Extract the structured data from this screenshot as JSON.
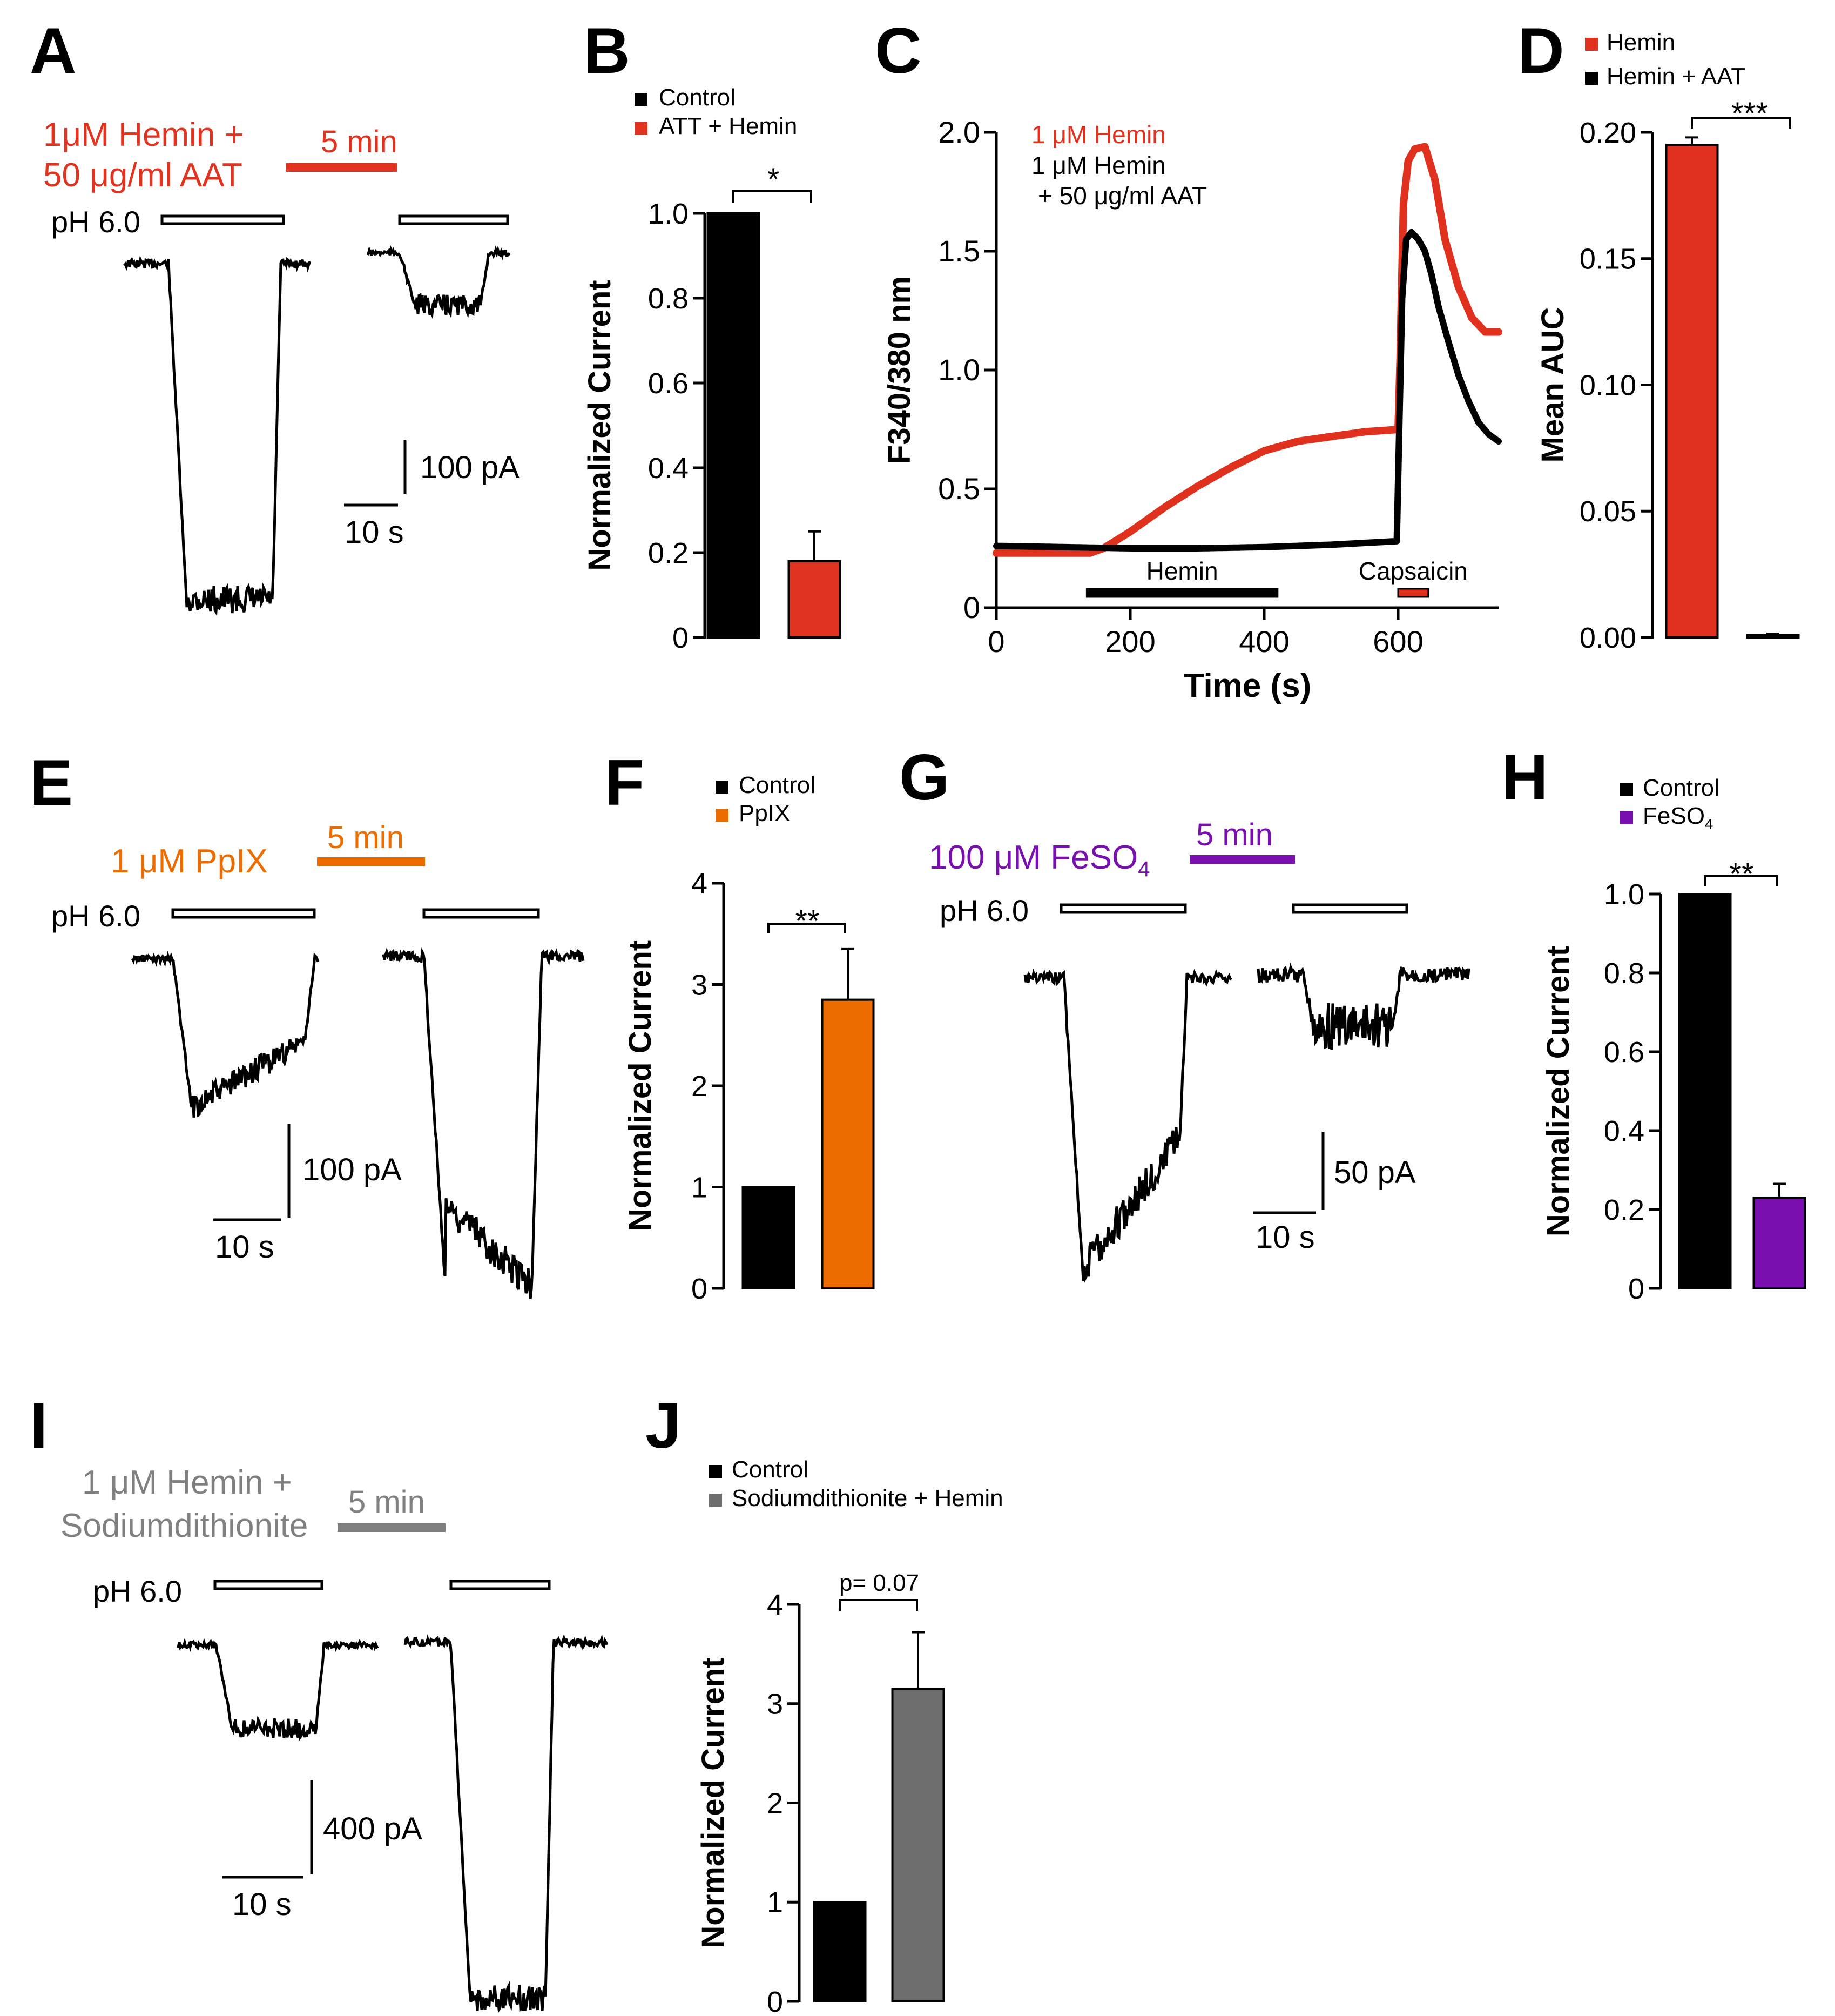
{
  "colors": {
    "black": "#000000",
    "red": "#e03320",
    "hemin_red": "#e0301e",
    "orange": "#ec6c00",
    "purple": "#7a0fb0",
    "gray": "#6e6e6e",
    "gray_text": "#808080"
  },
  "panels": {
    "A": {
      "letter": "A",
      "treatment_line1": "1μM Hemin +",
      "treatment_line2": "50 μg/ml AAT",
      "time_label": "5 min",
      "ph_label": "pH 6.0",
      "scale_y": "100 pA",
      "scale_x": "10 s",
      "trace_kind": "whole-cell current trace (control vs after Hemin + AAT)"
    },
    "B": {
      "letter": "B",
      "legend": [
        "Control",
        "ATT + Hemin"
      ],
      "sig": "*"
    },
    "C": {
      "letter": "C",
      "legend_line1": "1 μM Hemin",
      "legend_line2": "1 μM Hemin",
      "legend_line3": "+ 50 μg/ml AAT",
      "bar1_label": "Hemin",
      "bar2_label": "Capsaicin"
    },
    "D": {
      "letter": "D",
      "legend": [
        "Hemin",
        "Hemin + AAT"
      ],
      "sig": "***"
    },
    "E": {
      "letter": "E",
      "treatment": "1 μM PpIX",
      "time_label": "5 min",
      "ph_label": "pH 6.0",
      "scale_y": "100 pA",
      "scale_x": "10 s"
    },
    "F": {
      "letter": "F",
      "legend": [
        "Control",
        "PpIX"
      ],
      "sig": "**"
    },
    "G": {
      "letter": "G",
      "treatment": "100 μM FeSO",
      "treatment_sub": "4",
      "time_label": "5 min",
      "ph_label": "pH 6.0",
      "scale_y": "50 pA",
      "scale_x": "10 s"
    },
    "H": {
      "letter": "H",
      "legend1": "Control",
      "legend2": "FeSO",
      "legend2_sub": "4",
      "sig": "**"
    },
    "I": {
      "letter": "I",
      "treatment_line1": "1 μM Hemin +",
      "treatment_line2": "Sodiumdithionite",
      "time_label": "5 min",
      "ph_label": "pH 6.0",
      "scale_y": "400 pA",
      "scale_x": "10 s"
    },
    "J": {
      "letter": "J",
      "legend": [
        "Control",
        "Sodiumdithionite + Hemin"
      ],
      "sig": "p= 0.07"
    }
  },
  "chart_data": [
    {
      "id": "B",
      "type": "bar",
      "ylabel": "Normalized Current",
      "ylim": [
        0,
        1.0
      ],
      "yticks": [
        0,
        0.2,
        0.4,
        0.6,
        0.8,
        1.0
      ],
      "ytick_labels": [
        "0",
        "0.2",
        "0.4",
        "0.6",
        "0.8",
        "1.0"
      ],
      "categories": [
        "Control",
        "ATT + Hemin"
      ],
      "values": [
        1.0,
        0.18
      ],
      "errors": [
        0,
        0.07
      ],
      "colors": [
        "#000000",
        "#e03320"
      ]
    },
    {
      "id": "C",
      "type": "line",
      "xlabel": "Time (s)",
      "ylabel": "F340/380 nm",
      "xlim": [
        0,
        750
      ],
      "ylim": [
        0,
        2.0
      ],
      "xticks": [
        0,
        200,
        400,
        600
      ],
      "yticks": [
        0,
        0.5,
        1.0,
        1.5,
        2.0
      ],
      "ytick_labels": [
        "0",
        "0.5",
        "1.0",
        "1.5",
        "2.0"
      ],
      "series": [
        {
          "name": "1 μM Hemin",
          "color": "#e0301e",
          "x": [
            0,
            70,
            140,
            160,
            200,
            250,
            300,
            350,
            400,
            450,
            500,
            550,
            600,
            603,
            608,
            615,
            625,
            640,
            655,
            670,
            690,
            710,
            730,
            750
          ],
          "y": [
            0.23,
            0.23,
            0.23,
            0.25,
            0.32,
            0.42,
            0.51,
            0.59,
            0.66,
            0.7,
            0.72,
            0.74,
            0.75,
            1.05,
            1.7,
            1.88,
            1.93,
            1.94,
            1.8,
            1.55,
            1.35,
            1.22,
            1.16,
            1.16
          ]
        },
        {
          "name": "1 μM Hemin + 50 μg/ml AAT",
          "color": "#000000",
          "x": [
            0,
            100,
            200,
            300,
            400,
            500,
            598,
            602,
            606,
            612,
            620,
            630,
            640,
            650,
            660,
            675,
            690,
            705,
            720,
            735,
            750
          ],
          "y": [
            0.26,
            0.255,
            0.25,
            0.25,
            0.255,
            0.265,
            0.28,
            0.8,
            1.3,
            1.55,
            1.58,
            1.55,
            1.5,
            1.4,
            1.27,
            1.12,
            0.98,
            0.87,
            0.78,
            0.73,
            0.7
          ]
        }
      ],
      "application_bars": [
        {
          "label": "Hemin",
          "x0": 135,
          "x1": 420
        },
        {
          "label": "Capsaicin",
          "x0": 600,
          "x1": 645
        }
      ]
    },
    {
      "id": "D",
      "type": "bar",
      "ylabel": "Mean AUC",
      "ylim": [
        0,
        0.2
      ],
      "yticks": [
        0,
        0.05,
        0.1,
        0.15,
        0.2
      ],
      "ytick_labels": [
        "0.00",
        "0.05",
        "0.10",
        "0.15",
        "0.20"
      ],
      "categories": [
        "Hemin",
        "Hemin + AAT"
      ],
      "values": [
        0.195,
        0.001
      ],
      "errors": [
        0.003,
        0.0005
      ],
      "colors": [
        "#e0301e",
        "#000000"
      ]
    },
    {
      "id": "F",
      "type": "bar",
      "ylabel": "Normalized Current",
      "ylim": [
        0,
        4
      ],
      "yticks": [
        0,
        1,
        2,
        3,
        4
      ],
      "ytick_labels": [
        "0",
        "1",
        "2",
        "3",
        "4"
      ],
      "categories": [
        "Control",
        "PpIX"
      ],
      "values": [
        1.0,
        2.85
      ],
      "errors": [
        0,
        0.5
      ],
      "colors": [
        "#000000",
        "#ec6c00"
      ]
    },
    {
      "id": "H",
      "type": "bar",
      "ylabel": "Normalized Current",
      "ylim": [
        0,
        1.0
      ],
      "yticks": [
        0,
        0.2,
        0.4,
        0.6,
        0.8,
        1.0
      ],
      "ytick_labels": [
        "0",
        "0.2",
        "0.4",
        "0.6",
        "0.8",
        "1.0"
      ],
      "categories": [
        "Control",
        "FeSO4"
      ],
      "values": [
        1.0,
        0.23
      ],
      "errors": [
        0,
        0.035
      ],
      "colors": [
        "#000000",
        "#7a0fb0"
      ]
    },
    {
      "id": "J",
      "type": "bar",
      "ylabel": "Normalized Current",
      "ylim": [
        0,
        4
      ],
      "yticks": [
        0,
        1,
        2,
        3,
        4
      ],
      "ytick_labels": [
        "0",
        "1",
        "2",
        "3",
        "4"
      ],
      "categories": [
        "Control",
        "Sodiumdithionite + Hemin"
      ],
      "values": [
        1.0,
        3.15
      ],
      "errors": [
        0,
        0.57
      ],
      "colors": [
        "#000000",
        "#6e6e6e"
      ]
    }
  ]
}
